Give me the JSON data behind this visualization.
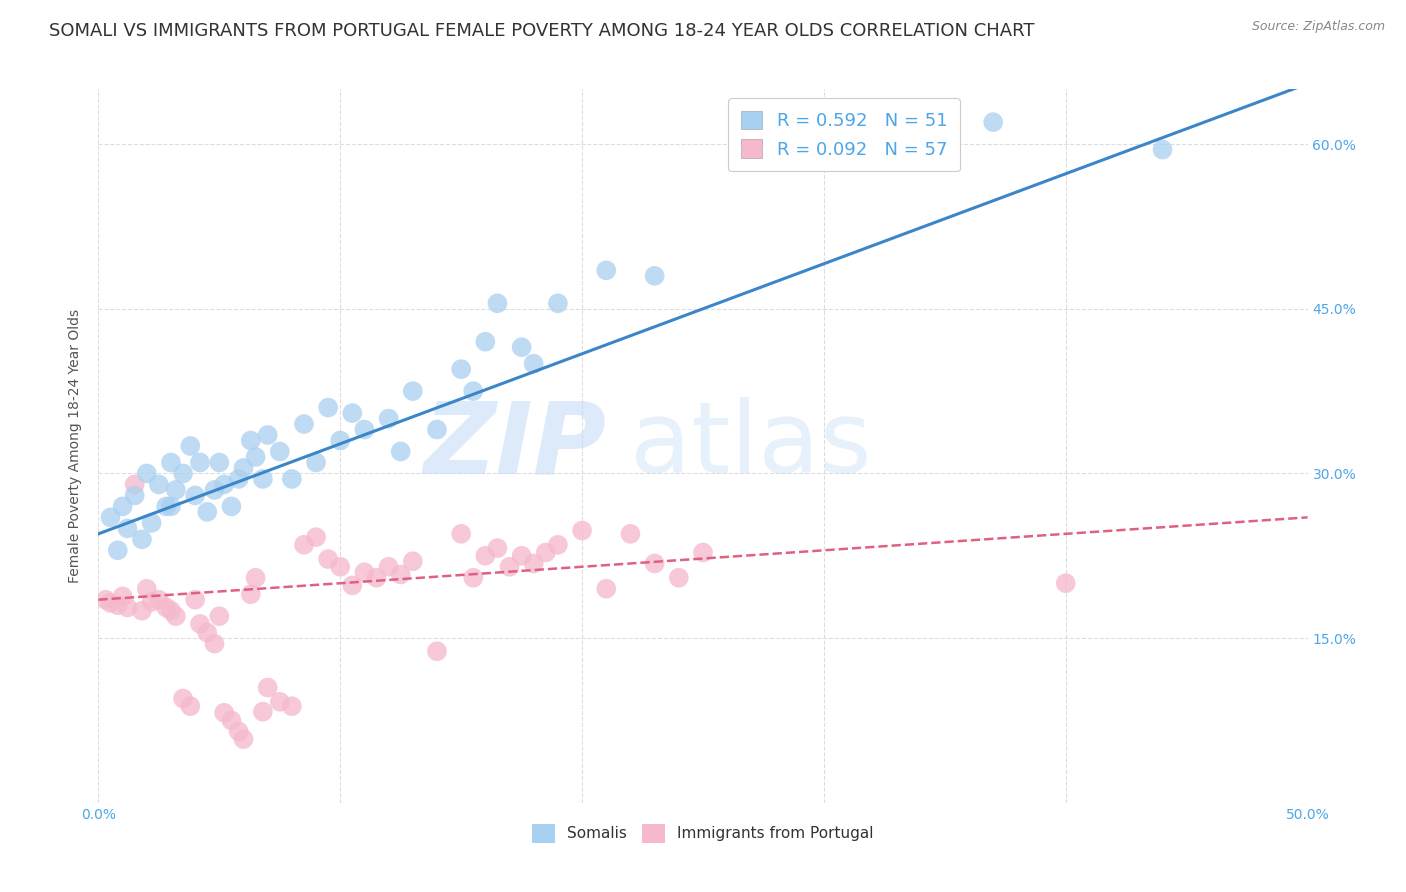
{
  "title": "SOMALI VS IMMIGRANTS FROM PORTUGAL FEMALE POVERTY AMONG 18-24 YEAR OLDS CORRELATION CHART",
  "source": "Source: ZipAtlas.com",
  "ylabel": "Female Poverty Among 18-24 Year Olds",
  "xlim": [
    0,
    0.5
  ],
  "ylim": [
    0,
    0.65
  ],
  "somali_color": "#a8d0f0",
  "portugal_color": "#f5b8cc",
  "somali_R": 0.592,
  "somali_N": 51,
  "portugal_R": 0.092,
  "portugal_N": 57,
  "legend_labels": [
    "Somalis",
    "Immigrants from Portugal"
  ],
  "watermark_zip": "ZIP",
  "watermark_atlas": "atlas",
  "somali_line_color": "#3a86c8",
  "portugal_line_color": "#e06080",
  "somali_line_x": [
    0.0,
    0.5
  ],
  "somali_line_y": [
    0.245,
    0.655
  ],
  "portugal_line_x": [
    0.0,
    0.5
  ],
  "portugal_line_y": [
    0.185,
    0.26
  ],
  "background_color": "#ffffff",
  "grid_color": "#dddddd",
  "title_fontsize": 13,
  "axis_label_fontsize": 10,
  "tick_fontsize": 10,
  "right_tick_color": "#4da6e8",
  "somali_x": [
    0.005,
    0.008,
    0.01,
    0.012,
    0.015,
    0.018,
    0.02,
    0.022,
    0.025,
    0.028,
    0.03,
    0.03,
    0.032,
    0.035,
    0.038,
    0.04,
    0.042,
    0.045,
    0.048,
    0.05,
    0.052,
    0.055,
    0.058,
    0.06,
    0.063,
    0.065,
    0.068,
    0.07,
    0.075,
    0.08,
    0.085,
    0.09,
    0.095,
    0.1,
    0.105,
    0.11,
    0.12,
    0.125,
    0.13,
    0.14,
    0.15,
    0.155,
    0.16,
    0.165,
    0.175,
    0.18,
    0.19,
    0.21,
    0.23,
    0.37,
    0.44
  ],
  "somali_y": [
    0.26,
    0.23,
    0.27,
    0.25,
    0.28,
    0.24,
    0.3,
    0.255,
    0.29,
    0.27,
    0.31,
    0.27,
    0.285,
    0.3,
    0.325,
    0.28,
    0.31,
    0.265,
    0.285,
    0.31,
    0.29,
    0.27,
    0.295,
    0.305,
    0.33,
    0.315,
    0.295,
    0.335,
    0.32,
    0.295,
    0.345,
    0.31,
    0.36,
    0.33,
    0.355,
    0.34,
    0.35,
    0.32,
    0.375,
    0.34,
    0.395,
    0.375,
    0.42,
    0.455,
    0.415,
    0.4,
    0.455,
    0.485,
    0.48,
    0.62,
    0.595
  ],
  "portugal_x": [
    0.003,
    0.005,
    0.008,
    0.01,
    0.012,
    0.015,
    0.018,
    0.02,
    0.022,
    0.025,
    0.028,
    0.03,
    0.032,
    0.035,
    0.038,
    0.04,
    0.042,
    0.045,
    0.048,
    0.05,
    0.052,
    0.055,
    0.058,
    0.06,
    0.063,
    0.065,
    0.068,
    0.07,
    0.075,
    0.08,
    0.085,
    0.09,
    0.095,
    0.1,
    0.105,
    0.11,
    0.115,
    0.12,
    0.125,
    0.13,
    0.14,
    0.15,
    0.155,
    0.16,
    0.165,
    0.17,
    0.175,
    0.18,
    0.185,
    0.19,
    0.2,
    0.21,
    0.22,
    0.23,
    0.24,
    0.25,
    0.4
  ],
  "portugal_y": [
    0.185,
    0.182,
    0.18,
    0.188,
    0.178,
    0.29,
    0.175,
    0.195,
    0.183,
    0.185,
    0.178,
    0.175,
    0.17,
    0.095,
    0.088,
    0.185,
    0.163,
    0.155,
    0.145,
    0.17,
    0.082,
    0.075,
    0.065,
    0.058,
    0.19,
    0.205,
    0.083,
    0.105,
    0.092,
    0.088,
    0.235,
    0.242,
    0.222,
    0.215,
    0.198,
    0.21,
    0.205,
    0.215,
    0.208,
    0.22,
    0.138,
    0.245,
    0.205,
    0.225,
    0.232,
    0.215,
    0.225,
    0.218,
    0.228,
    0.235,
    0.248,
    0.195,
    0.245,
    0.218,
    0.205,
    0.228,
    0.2
  ]
}
